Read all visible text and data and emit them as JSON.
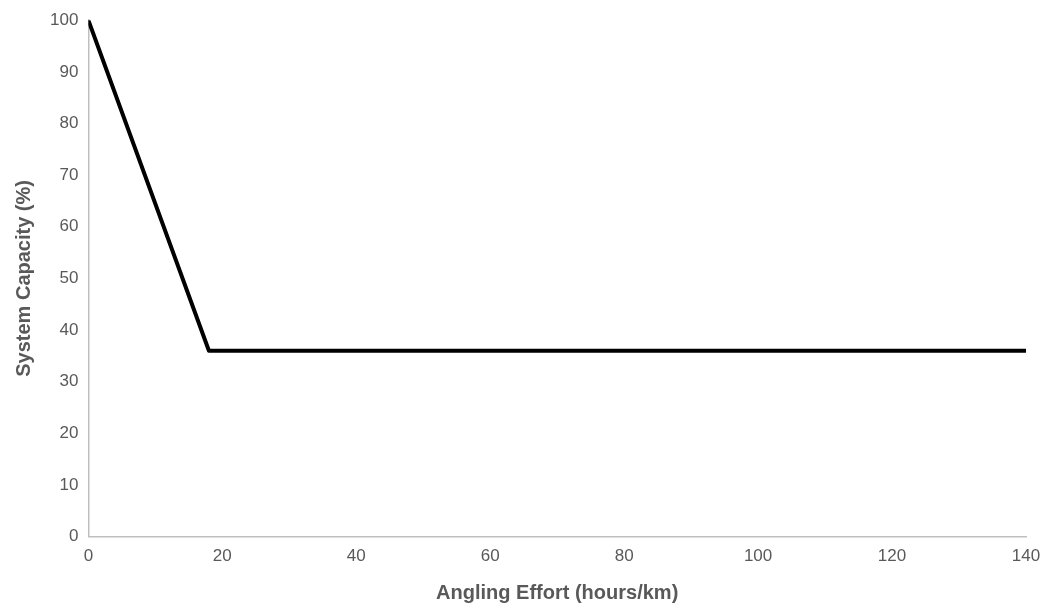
{
  "chart_data": {
    "type": "line",
    "xlabel": "Angling Effort (hours/km)",
    "ylabel": "System Capacity (%)",
    "series": [
      {
        "color": "#000000",
        "x": [
          0,
          18,
          140
        ],
        "values": [
          100,
          36,
          36
        ]
      }
    ],
    "xlim": [
      0,
      140
    ],
    "xticks": [
      0,
      20,
      40,
      60,
      80,
      100,
      120,
      140
    ],
    "ylim": [
      0,
      100
    ],
    "yticks": [
      0,
      10,
      20,
      30,
      40,
      50,
      60,
      70,
      80,
      90,
      100
    ],
    "grid": false,
    "legend": false,
    "marker": "none",
    "line_style": "solid"
  }
}
